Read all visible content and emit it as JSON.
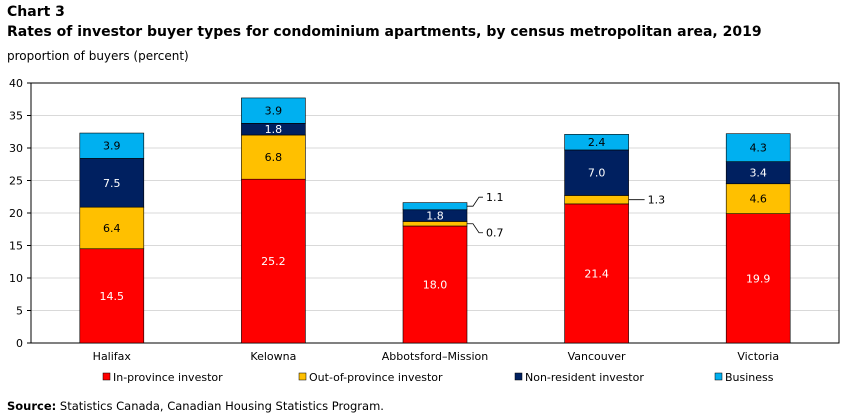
{
  "header": {
    "label": "Chart 3",
    "title": "Rates of investor buyer types for condominium apartments, by census metropolitan area, 2019",
    "unit": "proportion of buyers (percent)"
  },
  "source": {
    "prefix": "Source:",
    "text": "Statistics Canada, Canadian Housing Statistics Program."
  },
  "chart_data": {
    "type": "bar",
    "stacked": true,
    "title": "Rates of investor buyer types for condominium apartments, by census metropolitan area, 2019",
    "ylabel": "proportion of buyers (percent)",
    "xlabel": "",
    "ylim": [
      0,
      40
    ],
    "yticks": [
      0,
      5,
      10,
      15,
      20,
      25,
      30,
      35,
      40
    ],
    "categories": [
      "Halifax",
      "Kelowna",
      "Abbotsford–Mission",
      "Vancouver",
      "Victoria"
    ],
    "series": [
      {
        "name": "In-province investor",
        "color": "#ff0000",
        "label_color": "#ffffff",
        "values": [
          14.5,
          25.2,
          18.0,
          21.4,
          19.9
        ],
        "labels": [
          "14.5",
          "25.2",
          "18.0",
          "21.4",
          "19.9"
        ]
      },
      {
        "name": "Out-of-province investor",
        "color": "#ffc000",
        "label_color": "#000000",
        "values": [
          6.4,
          6.8,
          0.7,
          1.3,
          4.6
        ],
        "labels": [
          "6.4",
          "6.8",
          "0.7",
          "1.3",
          "4.6"
        ]
      },
      {
        "name": "Non-resident investor",
        "color": "#002060",
        "label_color": "#ffffff",
        "values": [
          7.5,
          1.8,
          1.8,
          7.0,
          3.4
        ],
        "labels": [
          "7.5",
          "1.8",
          "1.8",
          "7.0",
          "3.4"
        ]
      },
      {
        "name": "Business",
        "color": "#00b0f0",
        "label_color": "#000000",
        "values": [
          3.9,
          3.9,
          1.1,
          2.4,
          4.3
        ],
        "labels": [
          "3.9",
          "3.9",
          "1.1",
          "2.4",
          "4.3"
        ]
      }
    ],
    "legend_position": "bottom",
    "grid": true
  }
}
